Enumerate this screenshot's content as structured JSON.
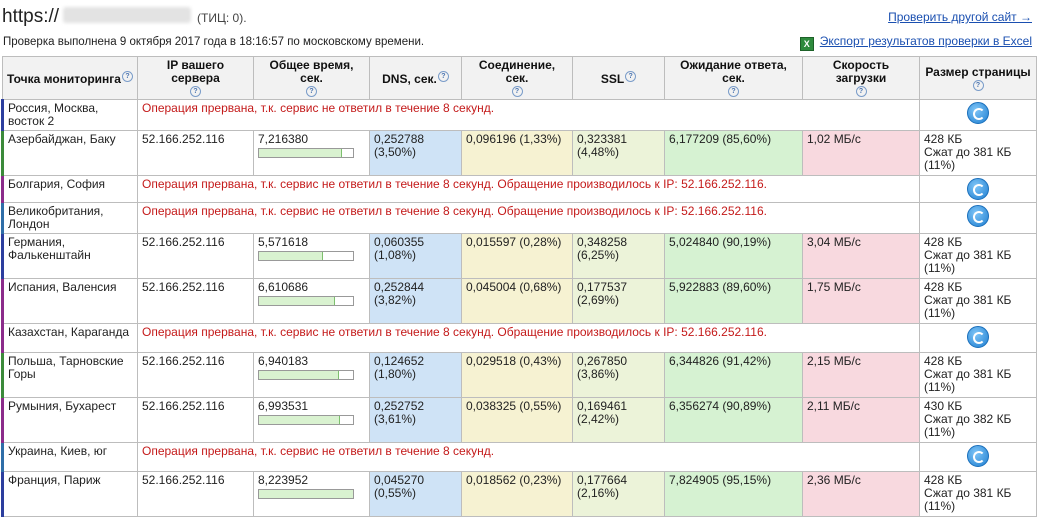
{
  "header": {
    "site_prefix": "https://",
    "tic": "(ТИЦ: 0).",
    "check_info": "Проверка выполнена 9 октября 2017 года в 18:16:57 по московскому времени.",
    "check_other": "Проверить другой сайт →",
    "export_label": "Экспорт результатов проверки в Excel",
    "export_icon": "excel-icon"
  },
  "columns": [
    "Точка мониторинга",
    "IP вашего сервера",
    "Общее время, сек.",
    "DNS, сек.",
    "Соединение, сек.",
    "SSL",
    "Ожидание ответа, сек.",
    "Скорость загрузки",
    "Размер страницы"
  ],
  "colors": {
    "dns": "#cfe3f6",
    "connection": "#f6f2d2",
    "ssl": "#ecf3d9",
    "wait": "#d6f2d2",
    "speed": "#f8d9df",
    "error": "#c41a1a",
    "link": "#1a4fb0"
  },
  "rows": [
    {
      "point": "Россия, Москва, восток 2",
      "error": "Операция прервана, т.к. сервис не ответил в течение 8 секунд."
    },
    {
      "point": "Азербайджан, Баку",
      "ip": "52.166.252.116",
      "total": "7,216380",
      "total_fraction": 0.87,
      "dns_fraction": 0.035,
      "dns": "0,252788",
      "dns_pct": "(3,50%)",
      "conn": "0,096196 (1,33%)",
      "ssl": "0,323381",
      "ssl_pct": "(4,48%)",
      "wait": "6,177209 (85,60%)",
      "speed": "1,02 МБ/с",
      "size": "428 КБ",
      "compressed": "Сжат до 381 КБ",
      "compressed_pct": "(11%)"
    },
    {
      "point": "Болгария, София",
      "error": "Операция прервана, т.к. сервис не ответил в течение 8 секунд. Обращение производилось к IP: 52.166.252.116."
    },
    {
      "point": "Великобритания, Лондон",
      "error": "Операция прервана, т.к. сервис не ответил в течение 8 секунд. Обращение производилось к IP: 52.166.252.116."
    },
    {
      "point": "Германия, Фалькенштайн",
      "ip": "52.166.252.116",
      "total": "5,571618",
      "total_fraction": 0.67,
      "dns_fraction": 0.011,
      "dns": "0,060355",
      "dns_pct": "(1,08%)",
      "conn": "0,015597 (0,28%)",
      "ssl": "0,348258",
      "ssl_pct": "(6,25%)",
      "wait": "5,024840 (90,19%)",
      "speed": "3,04 МБ/с",
      "size": "428 КБ",
      "compressed": "Сжат до 381 КБ",
      "compressed_pct": "(11%)"
    },
    {
      "point": "Испания, Валенсия",
      "ip": "52.166.252.116",
      "total": "6,610686",
      "total_fraction": 0.8,
      "dns_fraction": 0.038,
      "dns": "0,252844",
      "dns_pct": "(3,82%)",
      "conn": "0,045004 (0,68%)",
      "ssl": "0,177537",
      "ssl_pct": "(2,69%)",
      "wait": "5,922883 (89,60%)",
      "speed": "1,75 МБ/с",
      "size": "428 КБ",
      "compressed": "Сжат до 381 КБ",
      "compressed_pct": "(11%)"
    },
    {
      "point": "Казахстан, Караганда",
      "error": "Операция прервана, т.к. сервис не ответил в течение 8 секунд. Обращение производилось к IP: 52.166.252.116."
    },
    {
      "point": "Польша, Тарновские Горы",
      "ip": "52.166.252.116",
      "total": "6,940183",
      "total_fraction": 0.84,
      "dns_fraction": 0.018,
      "dns": "0,124652",
      "dns_pct": "(1,80%)",
      "conn": "0,029518 (0,43%)",
      "ssl": "0,267850",
      "ssl_pct": "(3,86%)",
      "wait": "6,344826 (91,42%)",
      "speed": "2,15 МБ/с",
      "size": "428 КБ",
      "compressed": "Сжат до 381 КБ",
      "compressed_pct": "(11%)"
    },
    {
      "point": "Румыния, Бухарест",
      "ip": "52.166.252.116",
      "total": "6,993531",
      "total_fraction": 0.85,
      "dns_fraction": 0.036,
      "dns": "0,252752",
      "dns_pct": "(3,61%)",
      "conn": "0,038325 (0,55%)",
      "ssl": "0,169461",
      "ssl_pct": "(2,42%)",
      "wait": "6,356274 (90,89%)",
      "speed": "2,11 МБ/с",
      "size": "430 КБ",
      "compressed": "Сжат до 382 КБ",
      "compressed_pct": "(11%)"
    },
    {
      "point": "Украина, Киев, юг",
      "error": "Операция прервана, т.к. сервис не ответил в течение 8 секунд."
    },
    {
      "point": "Франция, Париж",
      "ip": "52.166.252.116",
      "total": "8,223952",
      "total_fraction": 1.0,
      "dns_fraction": 0.006,
      "dns": "0,045270",
      "dns_pct": "(0,55%)",
      "conn": "0,018562 (0,23%)",
      "ssl": "0,177664",
      "ssl_pct": "(2,16%)",
      "wait": "7,824905 (95,15%)",
      "speed": "2,36 МБ/с",
      "size": "428 КБ",
      "compressed": "Сжат до 381 КБ",
      "compressed_pct": "(11%)"
    }
  ]
}
